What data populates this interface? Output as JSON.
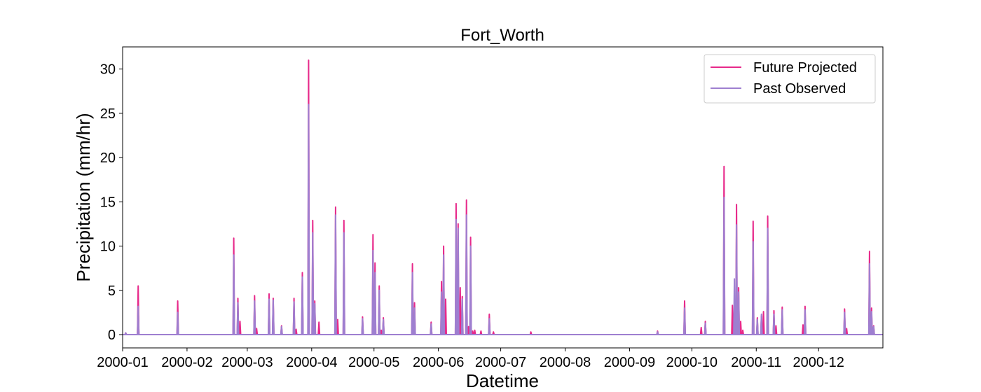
{
  "chart_data": {
    "type": "line",
    "title": "Fort_Worth",
    "xlabel": "Datetime",
    "ylabel": "Precipitation (mm/hr)",
    "x_axis": {
      "type": "date",
      "range": [
        "2000-01-01",
        "2000-12-31"
      ],
      "ticks": [
        "2000-01-01",
        "2000-02-01",
        "2000-03-01",
        "2000-04-01",
        "2000-05-01",
        "2000-06-01",
        "2000-07-01",
        "2000-08-01",
        "2000-09-01",
        "2000-10-01",
        "2000-11-01",
        "2000-12-01"
      ],
      "tick_labels": [
        "2000-01",
        "2000-02",
        "2000-03",
        "2000-04",
        "2000-05",
        "2000-06",
        "2000-07",
        "2000-08",
        "2000-09",
        "2000-10",
        "2000-11",
        "2000-12"
      ]
    },
    "y_axis": {
      "range": [
        -1.5,
        32.5
      ],
      "ticks": [
        0,
        5,
        10,
        15,
        20,
        25,
        30
      ],
      "tick_labels": [
        "0",
        "5",
        "10",
        "15",
        "20",
        "25",
        "30"
      ]
    },
    "grid": false,
    "legend": {
      "position": "top-right",
      "entries": [
        "Future Projected",
        "Past Observed"
      ]
    },
    "series": [
      {
        "name": "Future Projected",
        "color": "#e7298a",
        "x": [
          "2000-01-02",
          "2000-01-08",
          "2000-01-08",
          "2000-01-27",
          "2000-02-23",
          "2000-02-25",
          "2000-02-26",
          "2000-03-04",
          "2000-03-05",
          "2000-03-11",
          "2000-03-13",
          "2000-03-17",
          "2000-03-23",
          "2000-03-24",
          "2000-03-27",
          "2000-03-30",
          "2000-04-01",
          "2000-04-02",
          "2000-04-04",
          "2000-04-12",
          "2000-04-13",
          "2000-04-16",
          "2000-04-25",
          "2000-04-30",
          "2000-05-01",
          "2000-05-03",
          "2000-05-04",
          "2000-05-05",
          "2000-05-19",
          "2000-05-20",
          "2000-05-28",
          "2000-06-02",
          "2000-06-03",
          "2000-06-04",
          "2000-06-09",
          "2000-06-10",
          "2000-06-11",
          "2000-06-12",
          "2000-06-14",
          "2000-06-15",
          "2000-06-16",
          "2000-06-17",
          "2000-06-18",
          "2000-06-21",
          "2000-06-25",
          "2000-06-27",
          "2000-07-15",
          "2000-09-14",
          "2000-09-27",
          "2000-10-05",
          "2000-10-07",
          "2000-10-16",
          "2000-10-20",
          "2000-10-22",
          "2000-10-23",
          "2000-10-24",
          "2000-10-25",
          "2000-10-30",
          "2000-11-01",
          "2000-11-03",
          "2000-11-04",
          "2000-11-06",
          "2000-11-09",
          "2000-11-10",
          "2000-11-13",
          "2000-11-23",
          "2000-11-24",
          "2000-12-13",
          "2000-12-14",
          "2000-12-25",
          "2000-12-26",
          "2000-12-27"
        ],
        "y": [
          0.2,
          5.5,
          3.3,
          3.8,
          10.9,
          4.1,
          1.5,
          4.4,
          0.7,
          4.6,
          4.1,
          1.0,
          4.1,
          0.6,
          7.0,
          31.0,
          12.9,
          3.8,
          1.4,
          14.4,
          1.7,
          12.9,
          2.0,
          11.3,
          8.1,
          5.5,
          0.5,
          1.9,
          8.0,
          3.6,
          1.4,
          6.0,
          10.0,
          4.0,
          14.8,
          12.5,
          5.3,
          4.3,
          15.2,
          0.9,
          11.0,
          0.4,
          0.5,
          0.4,
          2.3,
          0.3,
          0.3,
          0.4,
          3.8,
          0.8,
          1.5,
          19.0,
          3.3,
          14.7,
          5.3,
          1.5,
          0.5,
          12.8,
          1.9,
          2.1,
          2.6,
          13.4,
          2.7,
          1.0,
          3.1,
          1.1,
          3.2,
          2.9,
          0.7,
          9.4,
          3.0,
          1.0
        ]
      },
      {
        "name": "Past Observed",
        "color": "#9e7fd0",
        "x": [
          "2000-01-02",
          "2000-01-08",
          "2000-01-27",
          "2000-02-23",
          "2000-02-25",
          "2000-03-04",
          "2000-03-11",
          "2000-03-13",
          "2000-03-17",
          "2000-03-23",
          "2000-03-27",
          "2000-03-30",
          "2000-04-01",
          "2000-04-02",
          "2000-04-12",
          "2000-04-16",
          "2000-04-25",
          "2000-04-30",
          "2000-05-01",
          "2000-05-03",
          "2000-05-05",
          "2000-05-19",
          "2000-05-20",
          "2000-05-28",
          "2000-06-02",
          "2000-06-03",
          "2000-06-09",
          "2000-06-10",
          "2000-06-12",
          "2000-06-14",
          "2000-06-16",
          "2000-06-25",
          "2000-09-14",
          "2000-09-27",
          "2000-10-07",
          "2000-10-16",
          "2000-10-21",
          "2000-10-22",
          "2000-10-23",
          "2000-10-30",
          "2000-11-01",
          "2000-11-03",
          "2000-11-06",
          "2000-11-09",
          "2000-11-13",
          "2000-11-24",
          "2000-12-13",
          "2000-12-25",
          "2000-12-26",
          "2000-12-27"
        ],
        "y": [
          0.2,
          3.2,
          2.5,
          9.0,
          3.6,
          3.8,
          4.0,
          3.9,
          0.9,
          3.7,
          6.5,
          26.0,
          11.5,
          3.5,
          13.5,
          11.5,
          1.8,
          9.5,
          7.0,
          5.0,
          1.7,
          7.0,
          3.0,
          1.2,
          4.8,
          9.0,
          13.0,
          12.0,
          4.0,
          13.5,
          10.0,
          1.8,
          0.3,
          3.0,
          1.3,
          15.5,
          6.3,
          12.4,
          4.8,
          10.5,
          1.7,
          2.3,
          12.0,
          2.3,
          2.8,
          2.8,
          2.5,
          8.0,
          2.6,
          0.9
        ]
      }
    ]
  }
}
